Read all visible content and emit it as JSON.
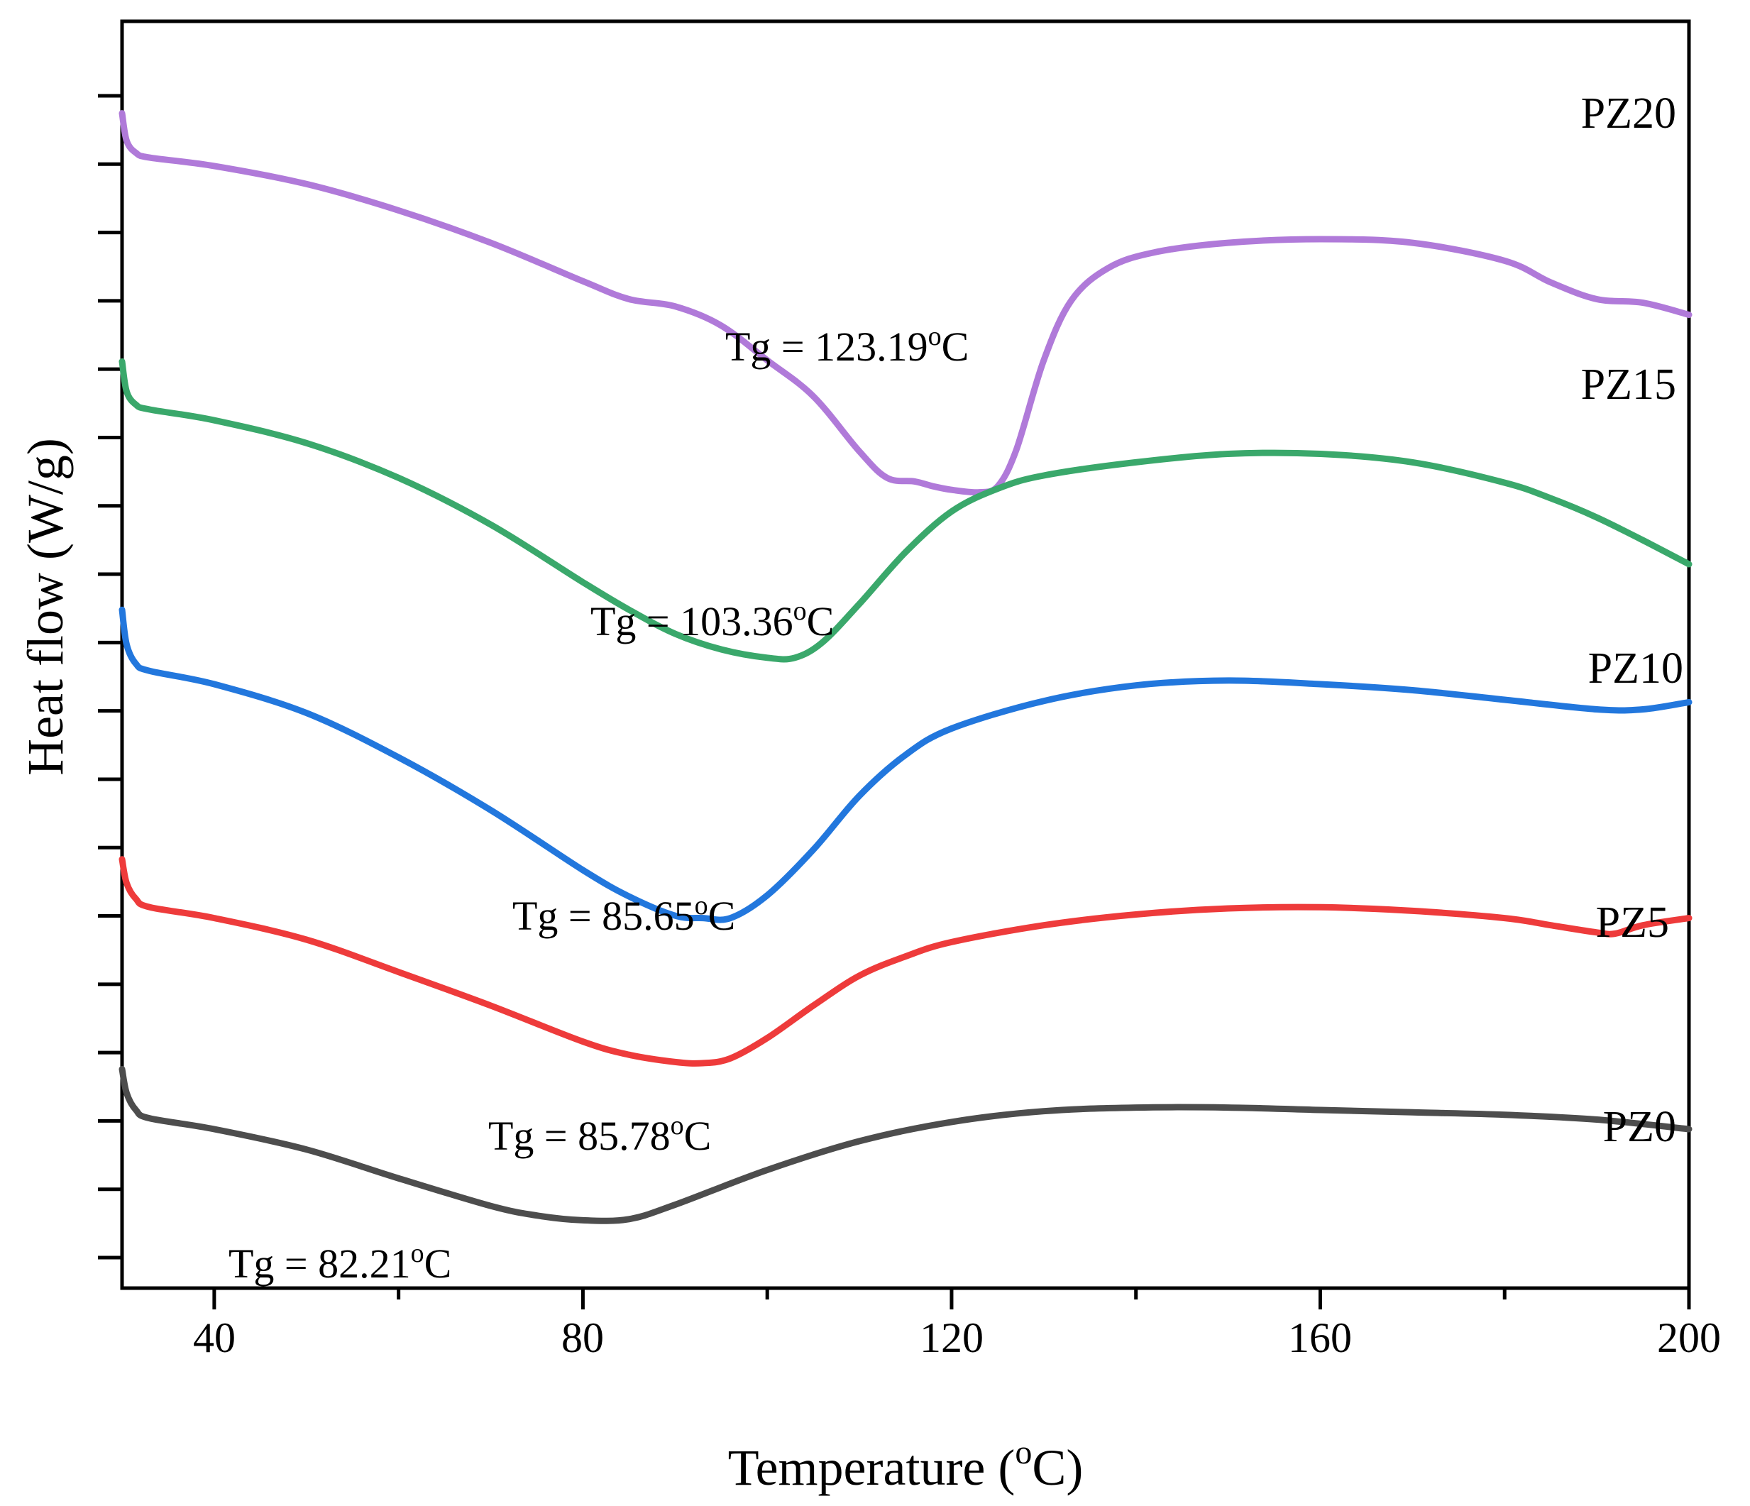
{
  "chart_data": {
    "type": "line",
    "title": "",
    "xlabel": "Temperature (",
    "xlabel_super": "o",
    "xlabel_suffix": "C)",
    "ylabel": "Heat flow (W/g)",
    "xlim": [
      30,
      200
    ],
    "ylim": [
      0,
      100
    ],
    "x_ticks": [
      40,
      80,
      120,
      160,
      200
    ],
    "x_tick_labels": [
      "40",
      "80",
      "120",
      "160",
      "200"
    ],
    "y_tick_count": 18,
    "y_tick_labels_shown": false,
    "grid": false,
    "legend": "none (series labelled at right end of each curve)",
    "series": [
      {
        "name": "PZ20",
        "label": "PZ20",
        "color": "#b07ad9",
        "points": [
          [
            30,
            94.7
          ],
          [
            30.5,
            92.4
          ],
          [
            31.5,
            91.4
          ],
          [
            33,
            91.0
          ],
          [
            40,
            90.3
          ],
          [
            50,
            88.8
          ],
          [
            60,
            86.6
          ],
          [
            70,
            83.9
          ],
          [
            80,
            80.7
          ],
          [
            85,
            79.2
          ],
          [
            90,
            78.6
          ],
          [
            95,
            77.0
          ],
          [
            100,
            74.1
          ],
          [
            105,
            71.1
          ],
          [
            110,
            66.5
          ],
          [
            113,
            64.3
          ],
          [
            116,
            64.0
          ],
          [
            118,
            63.6
          ],
          [
            120,
            63.3
          ],
          [
            123,
            63.1
          ],
          [
            125,
            63.6
          ],
          [
            127,
            66.6
          ],
          [
            130,
            74.1
          ],
          [
            133,
            79.1
          ],
          [
            137,
            81.8
          ],
          [
            142,
            83.1
          ],
          [
            150,
            83.9
          ],
          [
            160,
            84.2
          ],
          [
            170,
            83.9
          ],
          [
            180,
            82.4
          ],
          [
            185,
            80.6
          ],
          [
            190,
            79.2
          ],
          [
            195,
            78.9
          ],
          [
            200,
            77.9
          ]
        ],
        "tg_label": "Tg = 123.19",
        "tg_super": "o",
        "tg_suffix": "C"
      },
      {
        "name": "PZ15",
        "label": "PZ15",
        "color": "#3aa86b",
        "points": [
          [
            30,
            74.0
          ],
          [
            30.5,
            71.5
          ],
          [
            31.5,
            70.4
          ],
          [
            33,
            70.0
          ],
          [
            40,
            69.1
          ],
          [
            50,
            67.2
          ],
          [
            60,
            64.3
          ],
          [
            70,
            60.4
          ],
          [
            80,
            55.6
          ],
          [
            85,
            53.3
          ],
          [
            90,
            51.3
          ],
          [
            95,
            50.0
          ],
          [
            100,
            49.3
          ],
          [
            103,
            49.3
          ],
          [
            106,
            50.6
          ],
          [
            110,
            53.8
          ],
          [
            115,
            58.1
          ],
          [
            120,
            61.5
          ],
          [
            125,
            63.4
          ],
          [
            130,
            64.5
          ],
          [
            140,
            65.6
          ],
          [
            150,
            66.3
          ],
          [
            160,
            66.3
          ],
          [
            170,
            65.6
          ],
          [
            180,
            63.9
          ],
          [
            185,
            62.6
          ],
          [
            190,
            61.0
          ],
          [
            195,
            59.1
          ],
          [
            200,
            57.1
          ]
        ],
        "tg_label": "Tg = 103.36",
        "tg_super": "o",
        "tg_suffix": "C"
      },
      {
        "name": "PZ10",
        "label": "PZ10",
        "color": "#2277dd",
        "points": [
          [
            30,
            53.3
          ],
          [
            30.5,
            50.4
          ],
          [
            31.5,
            48.8
          ],
          [
            33,
            48.2
          ],
          [
            40,
            47.1
          ],
          [
            50,
            44.7
          ],
          [
            60,
            41.0
          ],
          [
            70,
            36.6
          ],
          [
            80,
            31.6
          ],
          [
            85,
            29.4
          ],
          [
            90,
            27.8
          ],
          [
            93,
            27.6
          ],
          [
            96,
            27.6
          ],
          [
            100,
            29.5
          ],
          [
            105,
            33.3
          ],
          [
            110,
            37.8
          ],
          [
            115,
            41.2
          ],
          [
            120,
            43.4
          ],
          [
            130,
            45.7
          ],
          [
            140,
            47.0
          ],
          [
            150,
            47.4
          ],
          [
            160,
            47.1
          ],
          [
            170,
            46.6
          ],
          [
            180,
            45.8
          ],
          [
            190,
            45.0
          ],
          [
            195,
            45.0
          ],
          [
            200,
            45.6
          ]
        ],
        "tg_label": "Tg = 85.65",
        "tg_super": "o",
        "tg_suffix": "C"
      },
      {
        "name": "PZ5",
        "label": "PZ5",
        "color": "#ee3b3b",
        "points": [
          [
            30,
            32.5
          ],
          [
            30.5,
            30.5
          ],
          [
            31.5,
            29.2
          ],
          [
            33,
            28.5
          ],
          [
            40,
            27.6
          ],
          [
            50,
            25.8
          ],
          [
            60,
            23.1
          ],
          [
            70,
            20.3
          ],
          [
            80,
            17.3
          ],
          [
            85,
            16.2
          ],
          [
            90,
            15.6
          ],
          [
            93,
            15.5
          ],
          [
            96,
            15.9
          ],
          [
            100,
            17.6
          ],
          [
            105,
            20.3
          ],
          [
            110,
            22.8
          ],
          [
            115,
            24.4
          ],
          [
            120,
            25.6
          ],
          [
            130,
            27.0
          ],
          [
            140,
            27.9
          ],
          [
            150,
            28.4
          ],
          [
            160,
            28.5
          ],
          [
            170,
            28.2
          ],
          [
            180,
            27.6
          ],
          [
            185,
            27.0
          ],
          [
            190,
            26.4
          ],
          [
            192,
            26.3
          ],
          [
            195,
            27.0
          ],
          [
            200,
            27.6
          ]
        ],
        "tg_label": "Tg = 85.78",
        "tg_super": "o",
        "tg_suffix": "C"
      },
      {
        "name": "PZ0",
        "label": "PZ0",
        "color": "#4d4d4d",
        "points": [
          [
            30,
            15.0
          ],
          [
            30.5,
            13.0
          ],
          [
            31.5,
            11.6
          ],
          [
            33,
            10.9
          ],
          [
            40,
            10.0
          ],
          [
            50,
            8.3
          ],
          [
            60,
            5.9
          ],
          [
            70,
            3.6
          ],
          [
            75,
            2.8
          ],
          [
            80,
            2.4
          ],
          [
            85,
            2.5
          ],
          [
            90,
            3.7
          ],
          [
            100,
            6.6
          ],
          [
            110,
            9.0
          ],
          [
            120,
            10.6
          ],
          [
            130,
            11.5
          ],
          [
            140,
            11.8
          ],
          [
            150,
            11.8
          ],
          [
            160,
            11.6
          ],
          [
            170,
            11.4
          ],
          [
            180,
            11.2
          ],
          [
            190,
            10.8
          ],
          [
            200,
            10.0
          ]
        ],
        "tg_label": "Tg = 82.21",
        "tg_super": "o",
        "tg_suffix": "C"
      }
    ]
  }
}
